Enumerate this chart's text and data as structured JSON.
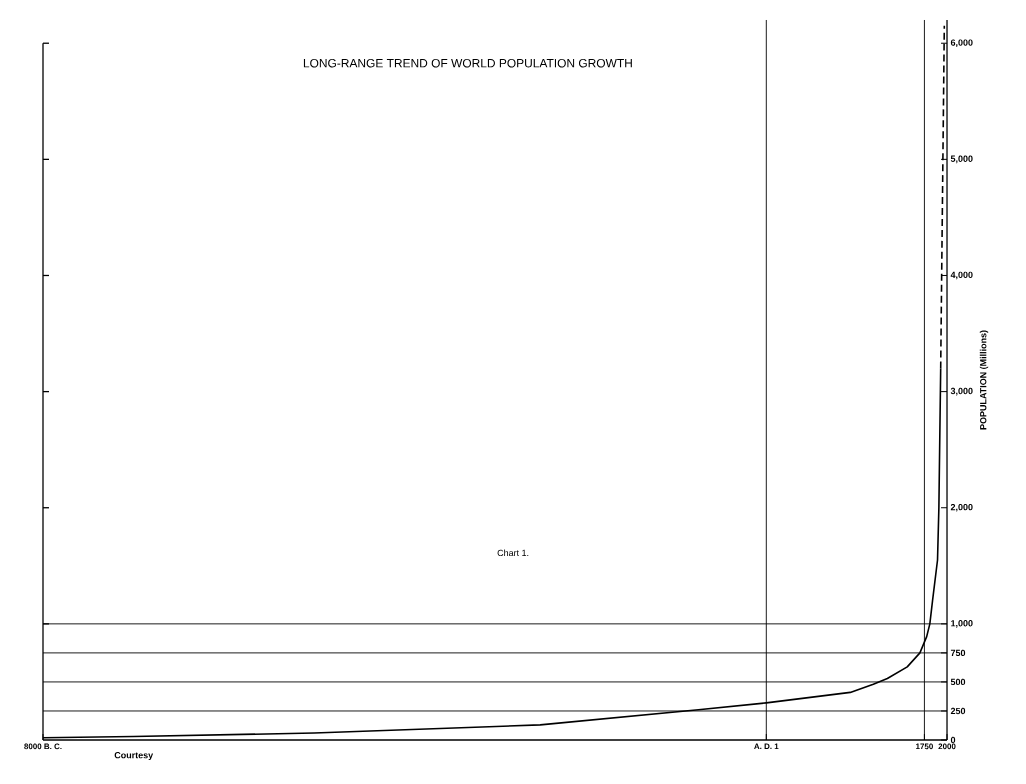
{
  "chart_data": {
    "type": "line",
    "title": "LONG-RANGE TREND OF WORLD POPULATION GROWTH",
    "ylabel": "POPULATION (Millions)",
    "annotations": [
      "Chart 1.",
      "Courtesy"
    ],
    "series": [
      {
        "color": "#000000",
        "line_style": "solid",
        "x": [
          -8000,
          -7000,
          -5000,
          -2500,
          -750,
          1,
          930,
          1185,
          1340,
          1560,
          1700,
          1775,
          1810,
          1840,
          1895,
          1910,
          1930
        ],
        "values": [
          20,
          30,
          60,
          130,
          260,
          320,
          410,
          480,
          530,
          630,
          750,
          890,
          1000,
          1200,
          1550,
          2000,
          3200
        ]
      },
      {
        "color": "#000000",
        "line_style": "dashed",
        "x": [
          1930,
          1970
        ],
        "values": [
          3200,
          6150
        ]
      }
    ],
    "xlim": [
      -8000,
      2000
    ],
    "xticks": [
      {
        "value": -8000,
        "label": "8000 B. C."
      },
      {
        "value": 1,
        "label": "A. D. 1"
      },
      1750,
      2000
    ],
    "ylim": [
      0,
      6200
    ],
    "yticks": [
      0,
      250,
      500,
      750,
      {
        "value": 1000,
        "label": "1,000"
      },
      {
        "value": 2000,
        "label": "2,000"
      },
      {
        "value": 3000,
        "label": "3,000"
      },
      {
        "value": 4000,
        "label": "4,000"
      },
      {
        "value": 5000,
        "label": "5,000"
      },
      {
        "value": 6000,
        "label": "6,000"
      }
    ],
    "ref_lines": [
      {
        "axis": "y",
        "value": 250
      },
      {
        "axis": "y",
        "value": 500
      },
      {
        "axis": "y",
        "value": 750
      },
      {
        "axis": "y",
        "value": 1000
      },
      {
        "axis": "x",
        "value": 1
      },
      {
        "axis": "x",
        "value": 1750
      }
    ],
    "grid": false,
    "marker": "none"
  }
}
